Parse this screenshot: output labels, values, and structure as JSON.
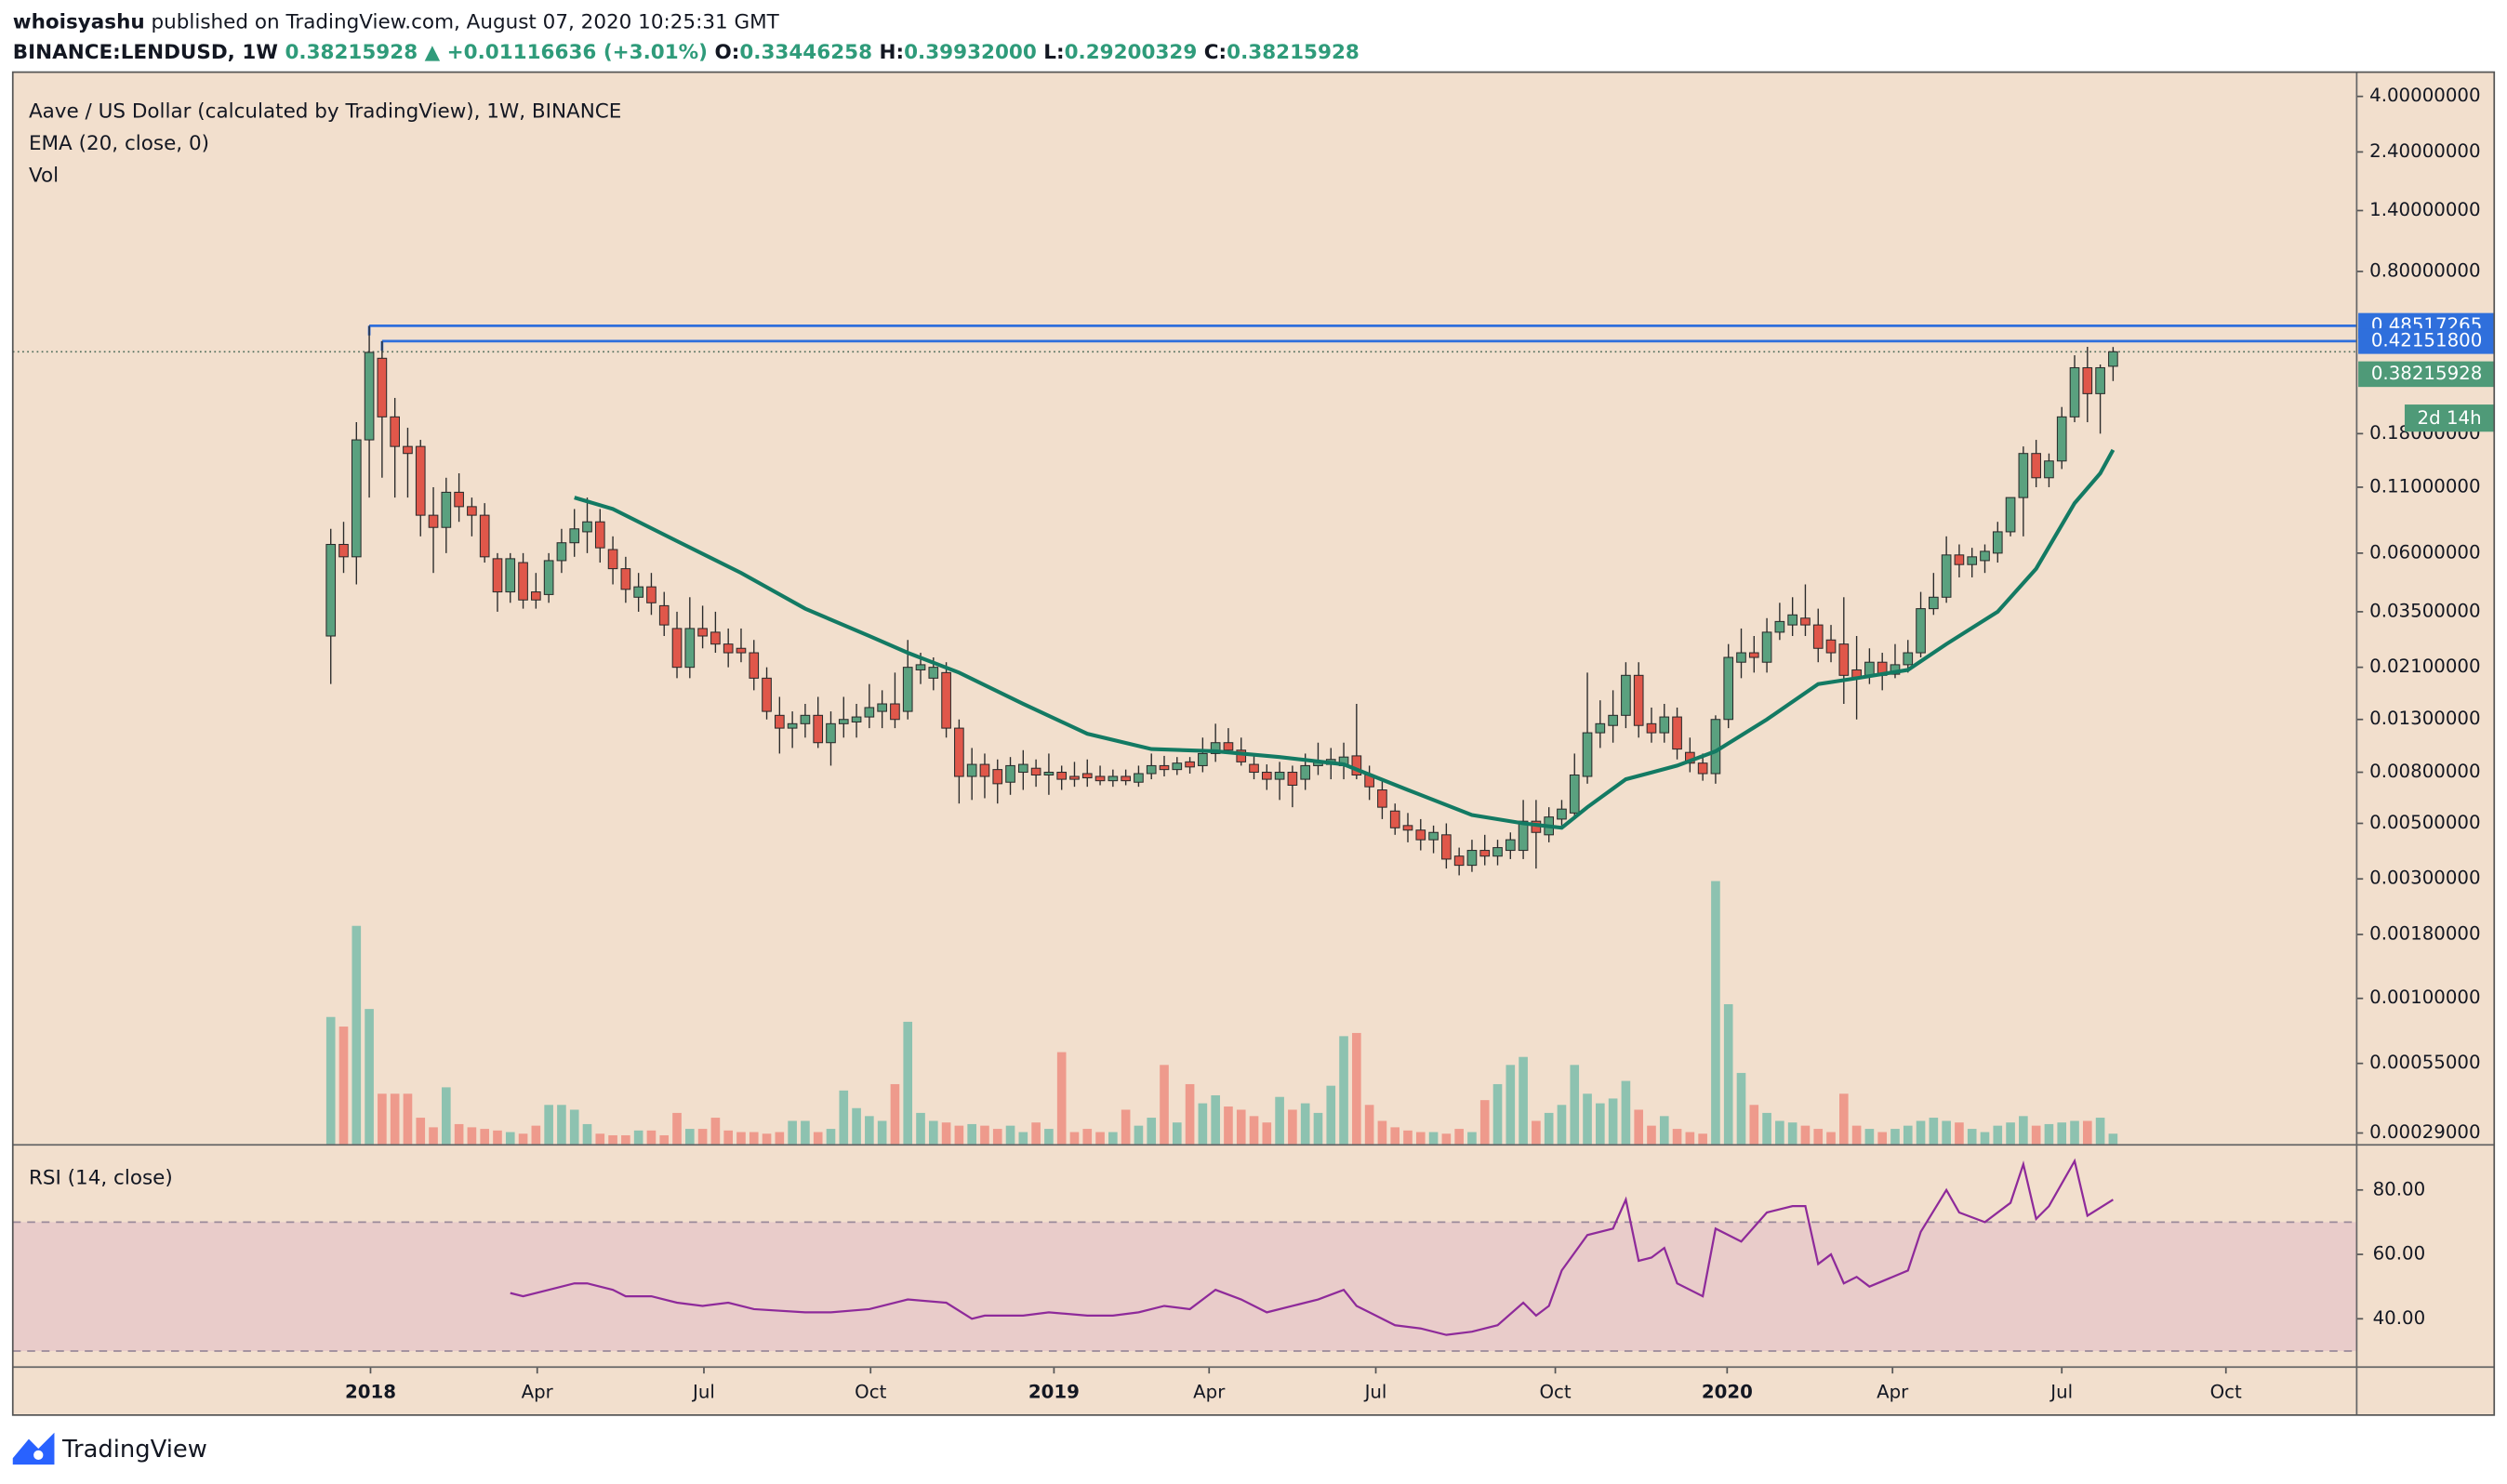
{
  "header": {
    "publisher": "whoisyashu",
    "published": "published on TradingView.com, August 07, 2020 10:25:31 GMT",
    "symbol": "BINANCE:LENDUSD, 1W",
    "last": "0.38215928",
    "change": "▲ +0.01116636 (+3.01%)",
    "ohlc": [
      [
        "O:",
        "0.33446258"
      ],
      [
        "H:",
        "0.39932000"
      ],
      [
        "L:",
        "0.29200329"
      ],
      [
        "C:",
        "0.38215928"
      ]
    ]
  },
  "footer": {
    "brand": "TradingView"
  },
  "chart_data": {
    "type": "candlestick",
    "title": "Aave / US Dollar (calculated by TradingView), 1W, BINANCE",
    "volume_label": "Vol",
    "log_scale": true,
    "up_color": "#5aa17f",
    "down_color": "#e0574a",
    "vol_up_color": "#8dc2b0",
    "vol_down_color": "#ee9a8c",
    "xlim": [
      -24.8,
      158
    ],
    "xticks": [
      {
        "value": 3.1,
        "label": "2018"
      },
      {
        "value": 16.1,
        "label": "Apr"
      },
      {
        "value": 29.1,
        "label": "Jul"
      },
      {
        "value": 42.1,
        "label": "Oct"
      },
      {
        "value": 56.4,
        "label": "2019"
      },
      {
        "value": 68.5,
        "label": "Apr"
      },
      {
        "value": 81.5,
        "label": "Jul"
      },
      {
        "value": 95.5,
        "label": "Oct"
      },
      {
        "value": 108.9,
        "label": "2020"
      },
      {
        "value": 121.8,
        "label": "Apr"
      },
      {
        "value": 135,
        "label": "Jul"
      },
      {
        "value": 147.8,
        "label": "Oct"
      }
    ],
    "ylim": [
      0.00026,
      5
    ],
    "yticks": [
      {
        "value": 4,
        "label": "4.00000000"
      },
      {
        "value": 2.4,
        "label": "2.40000000"
      },
      {
        "value": 1.4,
        "label": "1.40000000"
      },
      {
        "value": 0.8,
        "label": "0.80000000"
      },
      {
        "value": 0.18,
        "label": "0.18000000"
      },
      {
        "value": 0.11,
        "label": "0.11000000"
      },
      {
        "value": 0.06,
        "label": "0.06000000"
      },
      {
        "value": 0.035,
        "label": "0.03500000"
      },
      {
        "value": 0.021,
        "label": "0.02100000"
      },
      {
        "value": 0.013,
        "label": "0.01300000"
      },
      {
        "value": 0.008,
        "label": "0.00800000"
      },
      {
        "value": 0.005,
        "label": "0.00500000"
      },
      {
        "value": 0.003,
        "label": "0.00300000"
      },
      {
        "value": 0.0018,
        "label": "0.00180000"
      },
      {
        "value": 0.001,
        "label": "0.00100000"
      },
      {
        "value": 0.00055,
        "label": "0.00055000"
      },
      {
        "value": 0.00029,
        "label": "0.00029000"
      }
    ],
    "open": [
      0.028,
      0.065,
      0.058,
      0.17,
      0.36,
      0.21,
      0.16,
      0.16,
      0.085,
      0.076,
      0.105,
      0.092,
      0.085,
      0.057,
      0.042,
      0.055,
      0.042,
      0.041,
      0.056,
      0.066,
      0.073,
      0.08,
      0.062,
      0.052,
      0.04,
      0.044,
      0.037,
      0.03,
      0.021,
      0.03,
      0.029,
      0.026,
      0.025,
      0.024,
      0.019,
      0.0135,
      0.012,
      0.0125,
      0.0135,
      0.0105,
      0.0125,
      0.0127,
      0.0133,
      0.014,
      0.015,
      0.014,
      0.0205,
      0.019,
      0.02,
      0.012,
      0.0077,
      0.0086,
      0.0082,
      0.0073,
      0.008,
      0.0083,
      0.0078,
      0.008,
      0.0077,
      0.0079,
      0.0077,
      0.0074,
      0.0077,
      0.0073,
      0.0079,
      0.0085,
      0.0082,
      0.0088,
      0.0085,
      0.0095,
      0.0105,
      0.0098,
      0.0086,
      0.008,
      0.0075,
      0.008,
      0.0075,
      0.0085,
      0.0086,
      0.0085,
      0.0093,
      0.0078,
      0.0068,
      0.0056,
      0.0049,
      0.0047,
      0.0043,
      0.0045,
      0.0037,
      0.0034,
      0.0039,
      0.0037,
      0.0039,
      0.0039,
      0.0051,
      0.0045,
      0.0052,
      0.0055,
      0.0077,
      0.0115,
      0.0123,
      0.0135,
      0.0195,
      0.0125,
      0.0115,
      0.0133,
      0.0096,
      0.0087,
      0.0079,
      0.013,
      0.022,
      0.024,
      0.022,
      0.029,
      0.031,
      0.033,
      0.031,
      0.027,
      0.026,
      0.0205,
      0.0195,
      0.022,
      0.0197,
      0.0215,
      0.024,
      0.036,
      0.04,
      0.059,
      0.054,
      0.056,
      0.06,
      0.073,
      0.1,
      0.15,
      0.12,
      0.14,
      0.21,
      0.33,
      0.26,
      0.33446258
    ],
    "high": [
      0.075,
      0.08,
      0.2,
      0.48517265,
      0.421518,
      0.25,
      0.19,
      0.17,
      0.11,
      0.12,
      0.125,
      0.1,
      0.095,
      0.06,
      0.06,
      0.06,
      0.05,
      0.06,
      0.075,
      0.09,
      0.1,
      0.09,
      0.07,
      0.058,
      0.05,
      0.05,
      0.042,
      0.035,
      0.04,
      0.037,
      0.035,
      0.03,
      0.03,
      0.027,
      0.021,
      0.016,
      0.014,
      0.015,
      0.016,
      0.014,
      0.016,
      0.015,
      0.018,
      0.017,
      0.02,
      0.027,
      0.024,
      0.023,
      0.022,
      0.013,
      0.01,
      0.0095,
      0.009,
      0.0092,
      0.0098,
      0.009,
      0.0095,
      0.0085,
      0.0088,
      0.009,
      0.0085,
      0.0082,
      0.0082,
      0.0085,
      0.0095,
      0.0093,
      0.0092,
      0.0092,
      0.011,
      0.0125,
      0.012,
      0.011,
      0.0095,
      0.0086,
      0.0088,
      0.0085,
      0.0095,
      0.0105,
      0.01,
      0.0105,
      0.015,
      0.0085,
      0.0075,
      0.006,
      0.0055,
      0.0052,
      0.0049,
      0.005,
      0.004,
      0.0043,
      0.0045,
      0.0043,
      0.0046,
      0.0062,
      0.0062,
      0.0058,
      0.0062,
      0.0095,
      0.02,
      0.0155,
      0.017,
      0.022,
      0.022,
      0.0145,
      0.015,
      0.0145,
      0.011,
      0.0095,
      0.0135,
      0.026,
      0.03,
      0.028,
      0.033,
      0.038,
      0.04,
      0.045,
      0.036,
      0.031,
      0.04,
      0.028,
      0.025,
      0.024,
      0.026,
      0.027,
      0.042,
      0.05,
      0.07,
      0.065,
      0.063,
      0.065,
      0.08,
      0.1,
      0.16,
      0.17,
      0.15,
      0.23,
      0.37,
      0.4,
      0.34,
      0.39932
    ],
    "low": [
      0.018,
      0.05,
      0.045,
      0.1,
      0.12,
      0.1,
      0.1,
      0.07,
      0.05,
      0.06,
      0.08,
      0.07,
      0.055,
      0.035,
      0.038,
      0.036,
      0.036,
      0.038,
      0.05,
      0.058,
      0.06,
      0.055,
      0.045,
      0.038,
      0.035,
      0.034,
      0.028,
      0.019,
      0.019,
      0.025,
      0.024,
      0.021,
      0.022,
      0.017,
      0.013,
      0.0095,
      0.01,
      0.011,
      0.01,
      0.0085,
      0.011,
      0.011,
      0.012,
      0.012,
      0.012,
      0.013,
      0.018,
      0.017,
      0.011,
      0.006,
      0.0062,
      0.0063,
      0.006,
      0.0065,
      0.0068,
      0.007,
      0.0065,
      0.0068,
      0.007,
      0.007,
      0.0071,
      0.007,
      0.0071,
      0.007,
      0.0075,
      0.0077,
      0.0078,
      0.0079,
      0.008,
      0.0088,
      0.0095,
      0.0085,
      0.0075,
      0.0068,
      0.0062,
      0.0058,
      0.0068,
      0.0078,
      0.0075,
      0.0075,
      0.0075,
      0.0062,
      0.0052,
      0.0045,
      0.0042,
      0.0039,
      0.0038,
      0.0033,
      0.0031,
      0.0032,
      0.0034,
      0.0034,
      0.0036,
      0.0036,
      0.0033,
      0.0042,
      0.0049,
      0.0052,
      0.0072,
      0.01,
      0.0105,
      0.012,
      0.011,
      0.0105,
      0.0105,
      0.009,
      0.008,
      0.0074,
      0.0072,
      0.012,
      0.019,
      0.02,
      0.02,
      0.027,
      0.028,
      0.028,
      0.022,
      0.022,
      0.015,
      0.013,
      0.018,
      0.017,
      0.019,
      0.02,
      0.023,
      0.034,
      0.038,
      0.048,
      0.048,
      0.05,
      0.055,
      0.07,
      0.07,
      0.11,
      0.11,
      0.13,
      0.2,
      0.2,
      0.18,
      0.29200329
    ],
    "close": [
      0.065,
      0.058,
      0.17,
      0.38,
      0.21,
      0.16,
      0.15,
      0.085,
      0.076,
      0.105,
      0.092,
      0.085,
      0.058,
      0.042,
      0.057,
      0.039,
      0.039,
      0.056,
      0.066,
      0.075,
      0.08,
      0.063,
      0.052,
      0.043,
      0.044,
      0.038,
      0.031,
      0.021,
      0.03,
      0.028,
      0.026,
      0.024,
      0.024,
      0.019,
      0.014,
      0.012,
      0.0125,
      0.0135,
      0.0105,
      0.0125,
      0.013,
      0.0133,
      0.0145,
      0.015,
      0.013,
      0.021,
      0.0215,
      0.021,
      0.012,
      0.0077,
      0.0086,
      0.0077,
      0.0072,
      0.0085,
      0.0086,
      0.0078,
      0.008,
      0.0075,
      0.0075,
      0.0076,
      0.0074,
      0.0077,
      0.0074,
      0.0079,
      0.0085,
      0.0082,
      0.0087,
      0.0084,
      0.0095,
      0.0105,
      0.0098,
      0.0088,
      0.008,
      0.0075,
      0.008,
      0.0071,
      0.0085,
      0.0088,
      0.009,
      0.0092,
      0.0078,
      0.007,
      0.0058,
      0.0048,
      0.0047,
      0.0043,
      0.0046,
      0.0036,
      0.0034,
      0.0039,
      0.0037,
      0.004,
      0.0043,
      0.0051,
      0.0046,
      0.0053,
      0.0057,
      0.0078,
      0.0115,
      0.0125,
      0.0135,
      0.0195,
      0.0123,
      0.0115,
      0.0133,
      0.0099,
      0.0087,
      0.0079,
      0.013,
      0.023,
      0.024,
      0.023,
      0.029,
      0.032,
      0.034,
      0.031,
      0.025,
      0.024,
      0.0195,
      0.019,
      0.022,
      0.0195,
      0.0215,
      0.024,
      0.036,
      0.04,
      0.059,
      0.054,
      0.058,
      0.061,
      0.073,
      0.1,
      0.15,
      0.12,
      0.14,
      0.21,
      0.33,
      0.26,
      0.33,
      0.38215928
    ],
    "vlim": [
      0,
      170
    ],
    "volume": [
      80,
      74,
      137,
      85,
      32,
      32,
      32,
      17,
      11,
      36,
      13,
      11,
      10,
      9,
      8,
      7,
      12,
      25,
      25,
      22,
      13,
      7,
      6,
      6,
      9,
      9,
      6,
      20,
      10,
      10,
      17,
      9,
      8,
      8,
      7,
      8,
      15,
      15,
      8,
      10,
      34,
      23,
      18,
      15,
      38,
      77,
      20,
      15,
      14,
      12,
      13,
      12,
      10,
      12,
      8,
      14,
      10,
      58,
      8,
      10,
      8,
      8,
      22,
      12,
      17,
      50,
      14,
      38,
      26,
      31,
      24,
      22,
      18,
      14,
      30,
      22,
      26,
      20,
      37,
      68,
      70,
      25,
      15,
      11,
      9,
      8,
      8,
      7,
      10,
      8,
      28,
      38,
      50,
      55,
      15,
      20,
      25,
      50,
      32,
      26,
      29,
      40,
      22,
      12,
      18,
      10,
      8,
      7,
      165,
      88,
      45,
      25,
      20,
      15,
      14,
      12,
      10,
      8,
      32,
      12,
      10,
      8,
      10,
      12,
      15,
      17,
      15,
      14,
      10,
      8,
      12,
      14,
      18,
      12,
      13,
      14,
      15,
      15,
      17,
      7
    ],
    "ema": {
      "name": "EMA (20, close, 0)",
      "color": "#137a63",
      "x": [
        19,
        22,
        27,
        32,
        37,
        42,
        45,
        49,
        54,
        59,
        64,
        69,
        74,
        79,
        84,
        89,
        93,
        96,
        98,
        101,
        105,
        108,
        112,
        116,
        119,
        123,
        126,
        130,
        133,
        136,
        138,
        139
      ],
      "values": [
        0.1,
        0.09,
        0.067,
        0.05,
        0.036,
        0.028,
        0.024,
        0.02,
        0.015,
        0.0114,
        0.0099,
        0.0097,
        0.0092,
        0.0086,
        0.0068,
        0.0054,
        0.005,
        0.0048,
        0.0058,
        0.0075,
        0.0085,
        0.0097,
        0.013,
        0.018,
        0.019,
        0.0205,
        0.026,
        0.035,
        0.052,
        0.095,
        0.125,
        0.155
      ]
    },
    "levels": [
      {
        "value": 0.48517265,
        "label": "0.48517265",
        "start": 3,
        "color": "#2f6fdc"
      },
      {
        "value": 0.421518,
        "label": "0.42151800",
        "start": 4,
        "color": "#2f6fdc"
      }
    ],
    "last_price": {
      "value": 0.38215928,
      "label": "0.38215928",
      "countdown": "2d 14h",
      "color": "#4f9a78"
    },
    "rsi": {
      "title": "RSI (14, close)",
      "color": "#8e2a9a",
      "ylim": [
        25,
        94
      ],
      "yticks": [
        {
          "value": 80,
          "label": "80.00"
        },
        {
          "value": 60,
          "label": "60.00"
        },
        {
          "value": 40,
          "label": "40.00"
        }
      ],
      "band": [
        30,
        70
      ],
      "x": [
        14,
        15,
        17,
        19,
        20,
        22,
        23,
        25,
        27,
        29,
        31,
        33,
        37,
        39,
        42,
        45,
        48,
        50,
        51,
        54,
        56,
        59,
        61,
        63,
        65,
        67,
        69,
        71,
        73,
        75,
        77,
        79,
        80,
        81,
        83,
        85,
        87,
        89,
        91,
        93,
        94,
        95,
        96,
        98,
        100,
        101,
        102,
        103,
        104,
        105,
        107,
        108,
        110,
        112,
        114,
        115,
        116,
        117,
        118,
        119,
        120,
        123,
        124,
        126,
        127,
        129,
        131,
        132,
        133,
        134,
        136,
        137,
        139
      ],
      "values": [
        48,
        47,
        49,
        51,
        51,
        49,
        47,
        47,
        45,
        44,
        45,
        43,
        42,
        42,
        43,
        46,
        45,
        40,
        41,
        41,
        42,
        41,
        41,
        42,
        44,
        43,
        49,
        46,
        42,
        44,
        46,
        49,
        44,
        42,
        38,
        37,
        35,
        36,
        38,
        45,
        41,
        44,
        55,
        66,
        68,
        77,
        58,
        59,
        62,
        51,
        47,
        68,
        64,
        73,
        75,
        75,
        57,
        60,
        51,
        53,
        50,
        55,
        67,
        80,
        73,
        70,
        76,
        88,
        71,
        75,
        89,
        72,
        77
      ]
    }
  }
}
